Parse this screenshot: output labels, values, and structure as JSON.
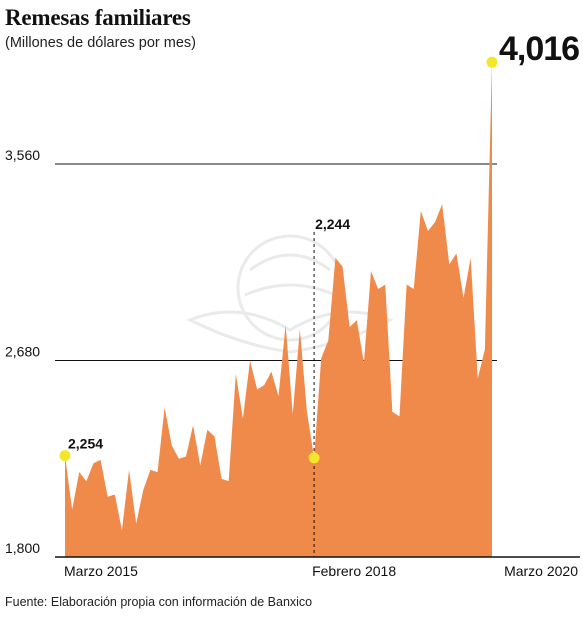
{
  "header": {
    "title": "Remesas familiares",
    "subtitle": "(Millones de dólares por mes)"
  },
  "footer": {
    "source": "Fuente: Elaboración propia con información de Banxico"
  },
  "colors": {
    "area": "#f08a4b",
    "marker": "#f5e62a",
    "axis": "#111111",
    "watermark": "#e6e6e6"
  },
  "chart_data": {
    "type": "area",
    "title": "Remesas familiares",
    "subtitle": "(Millones de dólares por mes)",
    "xlabel": "",
    "ylabel": "",
    "ylim": [
      1800,
      4100
    ],
    "y_ticks": [
      "1,800",
      "2,680",
      "3,560"
    ],
    "y_tick_values": [
      1800,
      2680,
      3560
    ],
    "x_tick_labels": [
      "Marzo 2015",
      "Febrero 2018",
      "Marzo 2020"
    ],
    "grid": true,
    "legend": "none",
    "x": [
      "2015-03",
      "2015-04",
      "2015-05",
      "2015-06",
      "2015-07",
      "2015-08",
      "2015-09",
      "2015-10",
      "2015-11",
      "2015-12",
      "2016-01",
      "2016-02",
      "2016-03",
      "2016-04",
      "2016-05",
      "2016-06",
      "2016-07",
      "2016-08",
      "2016-09",
      "2016-10",
      "2016-11",
      "2016-12",
      "2017-01",
      "2017-02",
      "2017-03",
      "2017-04",
      "2017-05",
      "2017-06",
      "2017-07",
      "2017-08",
      "2017-09",
      "2017-10",
      "2017-11",
      "2017-12",
      "2018-01",
      "2018-02",
      "2018-03",
      "2018-04",
      "2018-05",
      "2018-06",
      "2018-07",
      "2018-08",
      "2018-09",
      "2018-10",
      "2018-11",
      "2018-12",
      "2019-01",
      "2019-02",
      "2019-03",
      "2019-04",
      "2019-05",
      "2019-06",
      "2019-07",
      "2019-08",
      "2019-09",
      "2019-10",
      "2019-11",
      "2019-12",
      "2020-01",
      "2020-02",
      "2020-03"
    ],
    "values": [
      2254,
      2012,
      2180,
      2140,
      2220,
      2235,
      2070,
      2080,
      1920,
      2190,
      1950,
      2100,
      2190,
      2180,
      2470,
      2300,
      2240,
      2250,
      2390,
      2210,
      2370,
      2340,
      2150,
      2140,
      2620,
      2420,
      2680,
      2550,
      2570,
      2630,
      2520,
      2840,
      2440,
      2820,
      2450,
      2244,
      2690,
      2770,
      3140,
      3100,
      2830,
      2860,
      2670,
      3080,
      3000,
      3020,
      2450,
      2430,
      3020,
      3000,
      3350,
      3260,
      3300,
      3380,
      3110,
      3160,
      2960,
      3140,
      2600,
      2730,
      4016
    ],
    "annotations": [
      {
        "label": "2,254",
        "x": "2015-03",
        "value": 2254
      },
      {
        "label": "2,244",
        "x": "2018-02",
        "value": 2244
      },
      {
        "label": "4,016",
        "x": "2020-03",
        "value": 4016
      }
    ]
  }
}
